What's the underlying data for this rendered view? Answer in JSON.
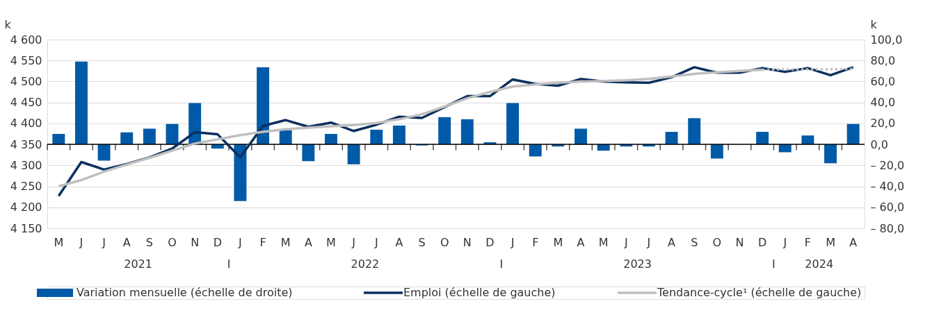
{
  "chart_data": {
    "type": "bar",
    "categories": [
      "M",
      "J",
      "J",
      "A",
      "S",
      "O",
      "N",
      "D",
      "J",
      "F",
      "M",
      "A",
      "M",
      "J",
      "J",
      "A",
      "S",
      "O",
      "N",
      "D",
      "J",
      "F",
      "M",
      "A",
      "M",
      "J",
      "J",
      "A",
      "S",
      "O",
      "N",
      "D",
      "J",
      "F",
      "M",
      "A"
    ],
    "ylabel": "k",
    "y2label": "k",
    "annotations": [
      "2021",
      "I",
      "2022",
      "I",
      "2023",
      "I",
      "2024"
    ],
    "series": [
      {
        "name": "Variation mensuelle (échelle de droite)",
        "axis": "y2",
        "color": "#005aa7",
        "values": [
          10,
          79,
          -15.5,
          11.5,
          15,
          19.5,
          39.5,
          -4,
          -54,
          73.5,
          13.5,
          -16,
          10,
          -19,
          14,
          18,
          -1,
          26,
          24,
          2,
          39.5,
          -11.5,
          -2,
          15,
          -6,
          -2,
          -2,
          12,
          25,
          -13.5,
          null,
          12,
          -7.5,
          8.5,
          -18,
          19.5
        ]
      },
      {
        "name": "Emploi (échelle de gauche)",
        "type": "line",
        "color": "#0b2f5e",
        "line_style": "solid",
        "values": [
          4227,
          4308,
          4290,
          4303,
          4319,
          4340,
          4379,
          4374,
          4319,
          4394,
          4408,
          4392,
          4402,
          4382,
          4397,
          4416,
          4413,
          4439,
          4465,
          4465,
          4505,
          4494,
          4490,
          4506,
          4500,
          4498,
          4497,
          4510,
          4534,
          4521,
          4521,
          4532,
          4523,
          4532,
          4515,
          4534
        ]
      },
      {
        "name": "Tendance-cycle¹ (échelle de gauche)",
        "type": "line",
        "color": "#bfbfbf",
        "line_style": "solid",
        "values": [
          4250,
          4265,
          4285,
          4302,
          4318,
          4335,
          4352,
          4362,
          4372,
          4380,
          4386,
          4390,
          4393,
          4396,
          4401,
          4410,
          4422,
          4440,
          4460,
          4475,
          4488,
          4493,
          4497,
          4500,
          4501,
          4503,
          4506,
          4512,
          4518,
          4522,
          4525,
          4528,
          null,
          null,
          null,
          null
        ]
      },
      {
        "type": "line",
        "color": "#bfbfbf",
        "line_style": "dotted",
        "values": [
          null,
          null,
          null,
          null,
          null,
          null,
          null,
          null,
          null,
          null,
          null,
          null,
          null,
          null,
          null,
          null,
          null,
          null,
          null,
          null,
          null,
          null,
          null,
          null,
          null,
          null,
          null,
          null,
          null,
          null,
          null,
          4528,
          4529,
          4529,
          4529,
          4530
        ]
      }
    ],
    "ylim": [
      4150,
      4600
    ],
    "yticks": [
      {
        "value": 4150,
        "label": "4 150"
      },
      {
        "value": 4200,
        "label": "4 200"
      },
      {
        "value": 4250,
        "label": "4 250"
      },
      {
        "value": 4300,
        "label": "4 300"
      },
      {
        "value": 4350,
        "label": "4 350"
      },
      {
        "value": 4400,
        "label": "4 400"
      },
      {
        "value": 4450,
        "label": "4 450"
      },
      {
        "value": 4500,
        "label": "4 500"
      },
      {
        "value": 4550,
        "label": "4 550"
      },
      {
        "value": 4600,
        "label": "4 600"
      }
    ],
    "y2lim": [
      -80,
      100
    ],
    "y2ticks": [
      {
        "value": -80,
        "label": "– 80,0"
      },
      {
        "value": -60,
        "label": "– 60,0"
      },
      {
        "value": -40,
        "label": "– 40,0"
      },
      {
        "value": -20,
        "label": "– 20,0"
      },
      {
        "value": 0,
        "label": "0,0"
      },
      {
        "value": 20,
        "label": "20,0"
      },
      {
        "value": 40,
        "label": "40,0"
      },
      {
        "value": 60,
        "label": "60,0"
      },
      {
        "value": 80,
        "label": "80,0"
      },
      {
        "value": 100,
        "label": "100,0"
      }
    ],
    "grid": "y",
    "legend": "bottom",
    "marker": "none"
  }
}
